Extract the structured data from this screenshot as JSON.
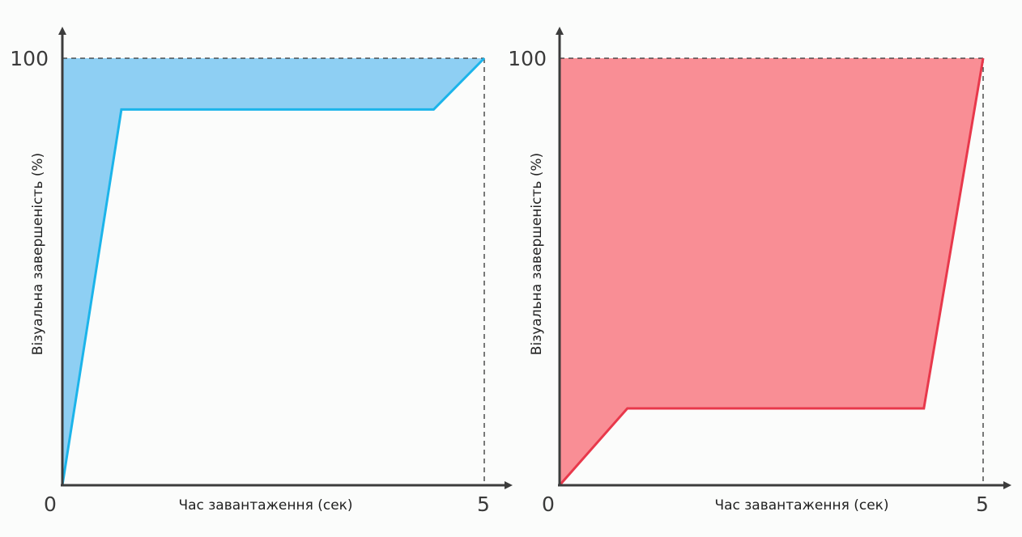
{
  "chart_data": [
    {
      "type": "area",
      "title": "",
      "xlabel": "Час завантаження (сек)",
      "ylabel": "Візуальна завершеність (%)",
      "xlim": [
        0,
        5
      ],
      "ylim": [
        0,
        100
      ],
      "x_tick_labels": [
        "0",
        "5"
      ],
      "y_tick_labels": [
        "100"
      ],
      "reference_lines": "dashed lines at y = 100 and x = 5",
      "fill": "area between the curve and the 100% line",
      "grid": false,
      "colors": {
        "line": "#1bb4ea",
        "fill": "#8ecff3"
      },
      "series": [
        {
          "x": [
            0,
            0.7,
            4.4,
            5
          ],
          "y": [
            0,
            88,
            88,
            100
          ]
        }
      ]
    },
    {
      "type": "area",
      "title": "",
      "xlabel": "Час завантаження (сек)",
      "ylabel": "Візуальна завершеність (%)",
      "xlim": [
        0,
        5
      ],
      "ylim": [
        0,
        100
      ],
      "x_tick_labels": [
        "0",
        "5"
      ],
      "y_tick_labels": [
        "100"
      ],
      "reference_lines": "dashed lines at y = 100 and x = 5",
      "fill": "area between the curve and the 100% line",
      "grid": false,
      "colors": {
        "line": "#e8384b",
        "fill": "#f98e95"
      },
      "series": [
        {
          "x": [
            0,
            0.8,
            4.3,
            5
          ],
          "y": [
            0,
            18,
            18,
            100
          ]
        }
      ]
    }
  ]
}
